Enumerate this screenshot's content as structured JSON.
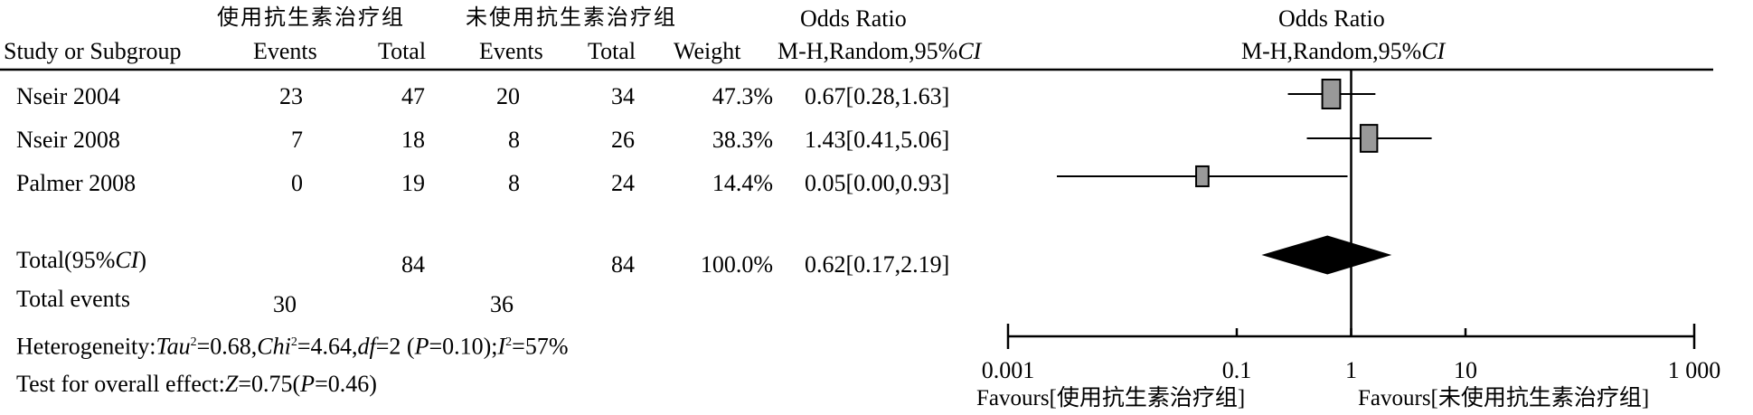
{
  "header": {
    "group1": "使用抗生素治疗组",
    "group2": "未使用抗生素治疗组",
    "or_title": "Odds Ratio",
    "plot_title": "Odds Ratio",
    "method": "M-H,Random,95%",
    "method_ci": "CI",
    "plot_method": "M-H,Random,95%",
    "plot_method_ci": "CI",
    "col_study": "Study or Subgroup",
    "col_events1": "Events",
    "col_total1": "Total",
    "col_events2": "Events",
    "col_total2": "Total",
    "col_weight": "Weight"
  },
  "rows": [
    {
      "study": "Nseir 2004",
      "events1": "23",
      "total1": "47",
      "events2": "20",
      "total2": "34",
      "weight": "47.3%",
      "or_text": "0.67[0.28,1.63]"
    },
    {
      "study": "Nseir 2008",
      "events1": "7",
      "total1": "18",
      "events2": "8",
      "total2": "26",
      "weight": "38.3%",
      "or_text": "1.43[0.41,5.06]"
    },
    {
      "study": "Palmer  2008",
      "events1": "0",
      "total1": "19",
      "events2": "8",
      "total2": "24",
      "weight": "14.4%",
      "or_text": "0.05[0.00,0.93]"
    }
  ],
  "total": {
    "label": "Total(95%",
    "label_ci": "CI",
    "label_end": ")",
    "total1": "84",
    "total2": "84",
    "weight": "100.0%",
    "or_text": "0.62[0.17,2.19]",
    "events_label": "Total events",
    "events1": "30",
    "events2": "36"
  },
  "heterogeneity": {
    "prefix": "Heterogeneity:",
    "tau_label": "Tau",
    "tau_value": "=0.68,",
    "chi_label": "Chi",
    "chi_value": "=4.64,",
    "df_label": "df",
    "df_value": "=2 (",
    "p_label": "P",
    "p_value": "=0.10);",
    "i_label": "I",
    "i_value": "=57%",
    "sup2": "2"
  },
  "overall": {
    "prefix": "Test for overall effect:",
    "z_label": "Z",
    "z_value": "=0.75(",
    "p_label": "P",
    "p_value": "=0.46)"
  },
  "axis": {
    "favours_left": "Favours[使用抗生素治疗组]",
    "favours_right": "Favours[未使用抗生素治疗组]"
  },
  "chart_data": {
    "type": "forest",
    "scale": "log",
    "xlim": [
      0.001,
      1000
    ],
    "ticks": [
      {
        "value": 0.001,
        "label": "0.001"
      },
      {
        "value": 0.1,
        "label": "0.1"
      },
      {
        "value": 1,
        "label": "1"
      },
      {
        "value": 10,
        "label": "10"
      },
      {
        "value": 1000,
        "label": "1 000"
      }
    ],
    "studies": [
      {
        "name": "Nseir 2004",
        "or": 0.67,
        "lo": 0.28,
        "hi": 1.63,
        "weight": 47.3
      },
      {
        "name": "Nseir 2008",
        "or": 1.43,
        "lo": 0.41,
        "hi": 5.06,
        "weight": 38.3
      },
      {
        "name": "Palmer  2008",
        "or": 0.05,
        "lo": 0.0,
        "hi": 0.93,
        "weight": 14.4
      }
    ],
    "pooled": {
      "or": 0.62,
      "lo": 0.17,
      "hi": 2.19
    },
    "colors": {
      "box": "#999999",
      "diamond": "#000000",
      "line": "#000000"
    }
  }
}
